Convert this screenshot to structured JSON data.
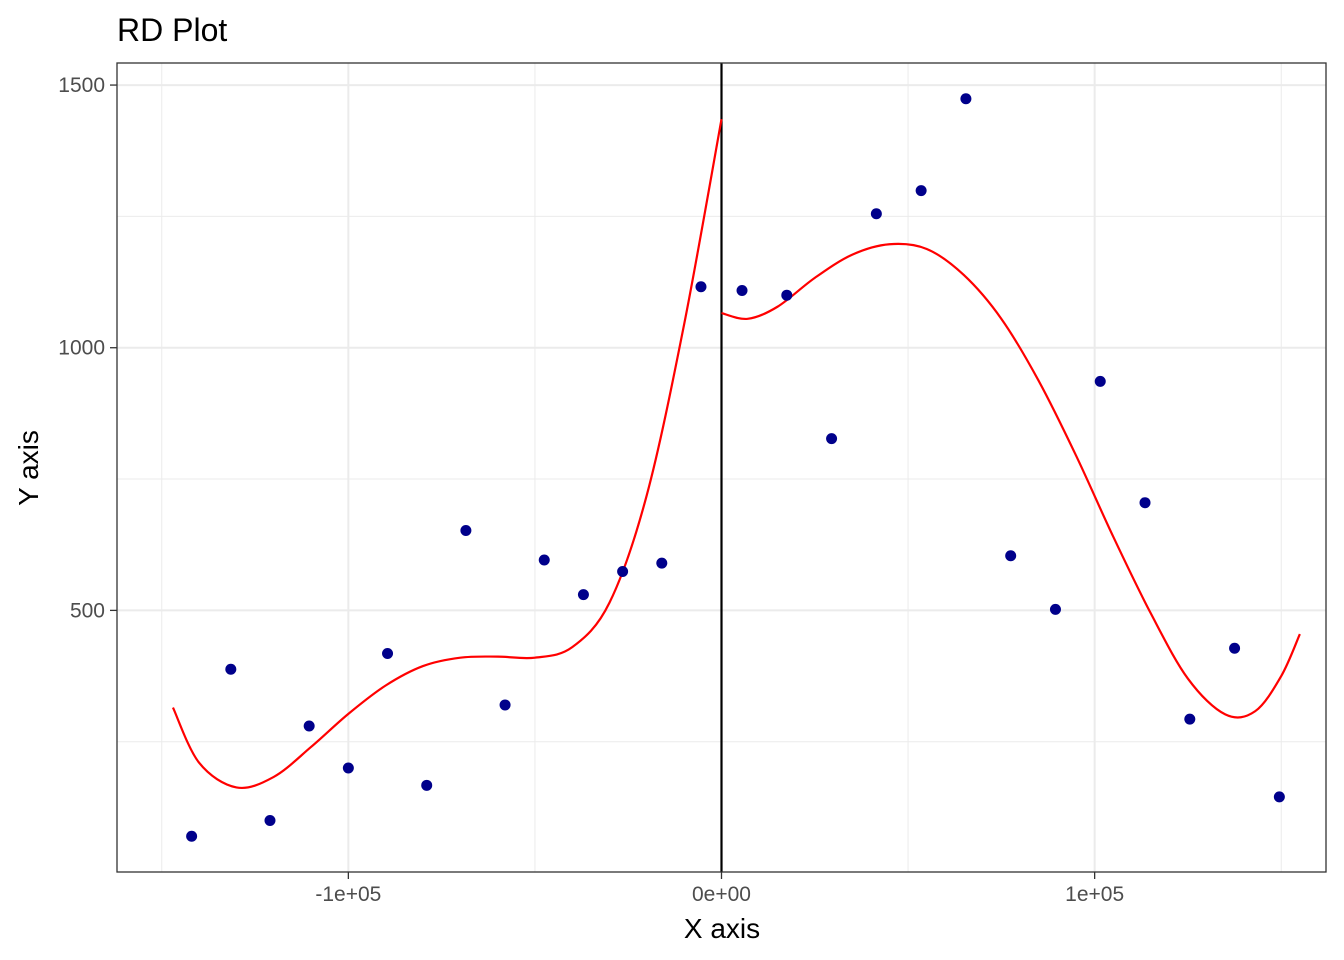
{
  "chart_data": {
    "type": "scatter",
    "title": "RD Plot",
    "xlabel": "X axis",
    "ylabel": "Y axis",
    "xlim": [
      -162000,
      162000
    ],
    "ylim": [
      2,
      1542
    ],
    "x_ticks": [
      -100000,
      0,
      100000
    ],
    "x_tick_labels": [
      "-1e+05",
      "0e+00",
      "1e+05"
    ],
    "y_ticks": [
      500,
      1000,
      1500
    ],
    "y_tick_labels": [
      "500",
      "1000",
      "1500"
    ],
    "y_minor_ticks": [
      250,
      750,
      1250
    ],
    "grid": true,
    "legend": "none",
    "cutoff": 0,
    "point_color": "#00008B",
    "fit_color": "#FF0000",
    "cutoff_color": "#000000",
    "points": [
      {
        "x": -142000,
        "y": 70
      },
      {
        "x": -131500,
        "y": 388
      },
      {
        "x": -121000,
        "y": 100
      },
      {
        "x": -110500,
        "y": 280
      },
      {
        "x": -100000,
        "y": 200
      },
      {
        "x": -89500,
        "y": 418
      },
      {
        "x": -79000,
        "y": 167
      },
      {
        "x": -68500,
        "y": 652
      },
      {
        "x": -58000,
        "y": 320
      },
      {
        "x": -47500,
        "y": 596
      },
      {
        "x": -37000,
        "y": 530
      },
      {
        "x": -26500,
        "y": 574
      },
      {
        "x": -16000,
        "y": 590
      },
      {
        "x": -5500,
        "y": 1116
      },
      {
        "x": 5500,
        "y": 1109
      },
      {
        "x": 17500,
        "y": 1100
      },
      {
        "x": 29500,
        "y": 827
      },
      {
        "x": 41500,
        "y": 1255
      },
      {
        "x": 53500,
        "y": 1299
      },
      {
        "x": 65500,
        "y": 1474
      },
      {
        "x": 77500,
        "y": 604
      },
      {
        "x": 89500,
        "y": 502
      },
      {
        "x": 101500,
        "y": 936
      },
      {
        "x": 113500,
        "y": 705
      },
      {
        "x": 125500,
        "y": 293
      },
      {
        "x": 137500,
        "y": 428
      },
      {
        "x": 149500,
        "y": 145
      }
    ],
    "fit_left": [
      {
        "x": -147000,
        "y": 315
      },
      {
        "x": -140000,
        "y": 210
      },
      {
        "x": -130000,
        "y": 163
      },
      {
        "x": -120000,
        "y": 183
      },
      {
        "x": -110000,
        "y": 240
      },
      {
        "x": -100000,
        "y": 303
      },
      {
        "x": -90000,
        "y": 357
      },
      {
        "x": -80000,
        "y": 394
      },
      {
        "x": -70000,
        "y": 410
      },
      {
        "x": -60000,
        "y": 412
      },
      {
        "x": -50000,
        "y": 410
      },
      {
        "x": -40000,
        "y": 430
      },
      {
        "x": -30000,
        "y": 515
      },
      {
        "x": -20000,
        "y": 720
      },
      {
        "x": -10000,
        "y": 1045
      },
      {
        "x": 0,
        "y": 1435
      }
    ],
    "fit_right": [
      {
        "x": 0,
        "y": 1066
      },
      {
        "x": 7000,
        "y": 1055
      },
      {
        "x": 15000,
        "y": 1078
      },
      {
        "x": 25000,
        "y": 1133
      },
      {
        "x": 35000,
        "y": 1177
      },
      {
        "x": 45000,
        "y": 1197
      },
      {
        "x": 55000,
        "y": 1188
      },
      {
        "x": 65000,
        "y": 1138
      },
      {
        "x": 75000,
        "y": 1055
      },
      {
        "x": 85000,
        "y": 937
      },
      {
        "x": 95000,
        "y": 795
      },
      {
        "x": 105000,
        "y": 640
      },
      {
        "x": 115000,
        "y": 495
      },
      {
        "x": 125000,
        "y": 370
      },
      {
        "x": 135000,
        "y": 302
      },
      {
        "x": 143000,
        "y": 308
      },
      {
        "x": 150000,
        "y": 375
      },
      {
        "x": 155000,
        "y": 455
      }
    ]
  }
}
